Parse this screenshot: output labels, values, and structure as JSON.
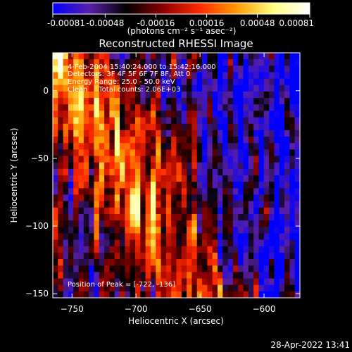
{
  "footer": {
    "timestamp": "28-Apr-2022 13:41"
  },
  "chart_data": {
    "type": "heatmap",
    "title": "Reconstructed RHESSI Image",
    "xlabel": "Heliocentric X (arcsec)",
    "ylabel": "Heliocentric Y (arcsec)",
    "xlim": [
      -765,
      -572
    ],
    "ylim": [
      -153,
      28
    ],
    "x_ticks": [
      -750,
      -700,
      -650,
      -600
    ],
    "y_ticks": [
      0,
      -50,
      -100,
      -150
    ],
    "colorbar": {
      "range": [
        -0.00081,
        0.00081
      ],
      "ticks": [
        -0.00081,
        -0.00048,
        -0.00016,
        0.00016,
        0.00048,
        0.00081
      ],
      "tick_labels": [
        "-0.00081",
        "-0.00048",
        "-0.00016",
        "0.00016",
        "0.00048",
        "0.00081"
      ],
      "unit_label": "(photons cm⁻² s⁻¹ asec⁻²)",
      "colors": [
        "#0000ff",
        "#5a1fa8",
        "#000000",
        "#8b0000",
        "#ff2a00",
        "#ff9a00",
        "#ffff80",
        "#ffffff"
      ]
    },
    "annotations": [
      "4-Feb-2004 15:40:24.000 to 15:42:16.000",
      "Detectors: 3F 4F 5F 6F 7F 8F, Att 0",
      "Energy Range: 25.0 - 50.0 keV",
      "Clean     Total counts: 2.06E+03"
    ],
    "peak": {
      "label": "Position of Peak = ",
      "value": "[-722, -136]",
      "x": -722,
      "y": -136
    },
    "grid": false,
    "legend": "none"
  }
}
